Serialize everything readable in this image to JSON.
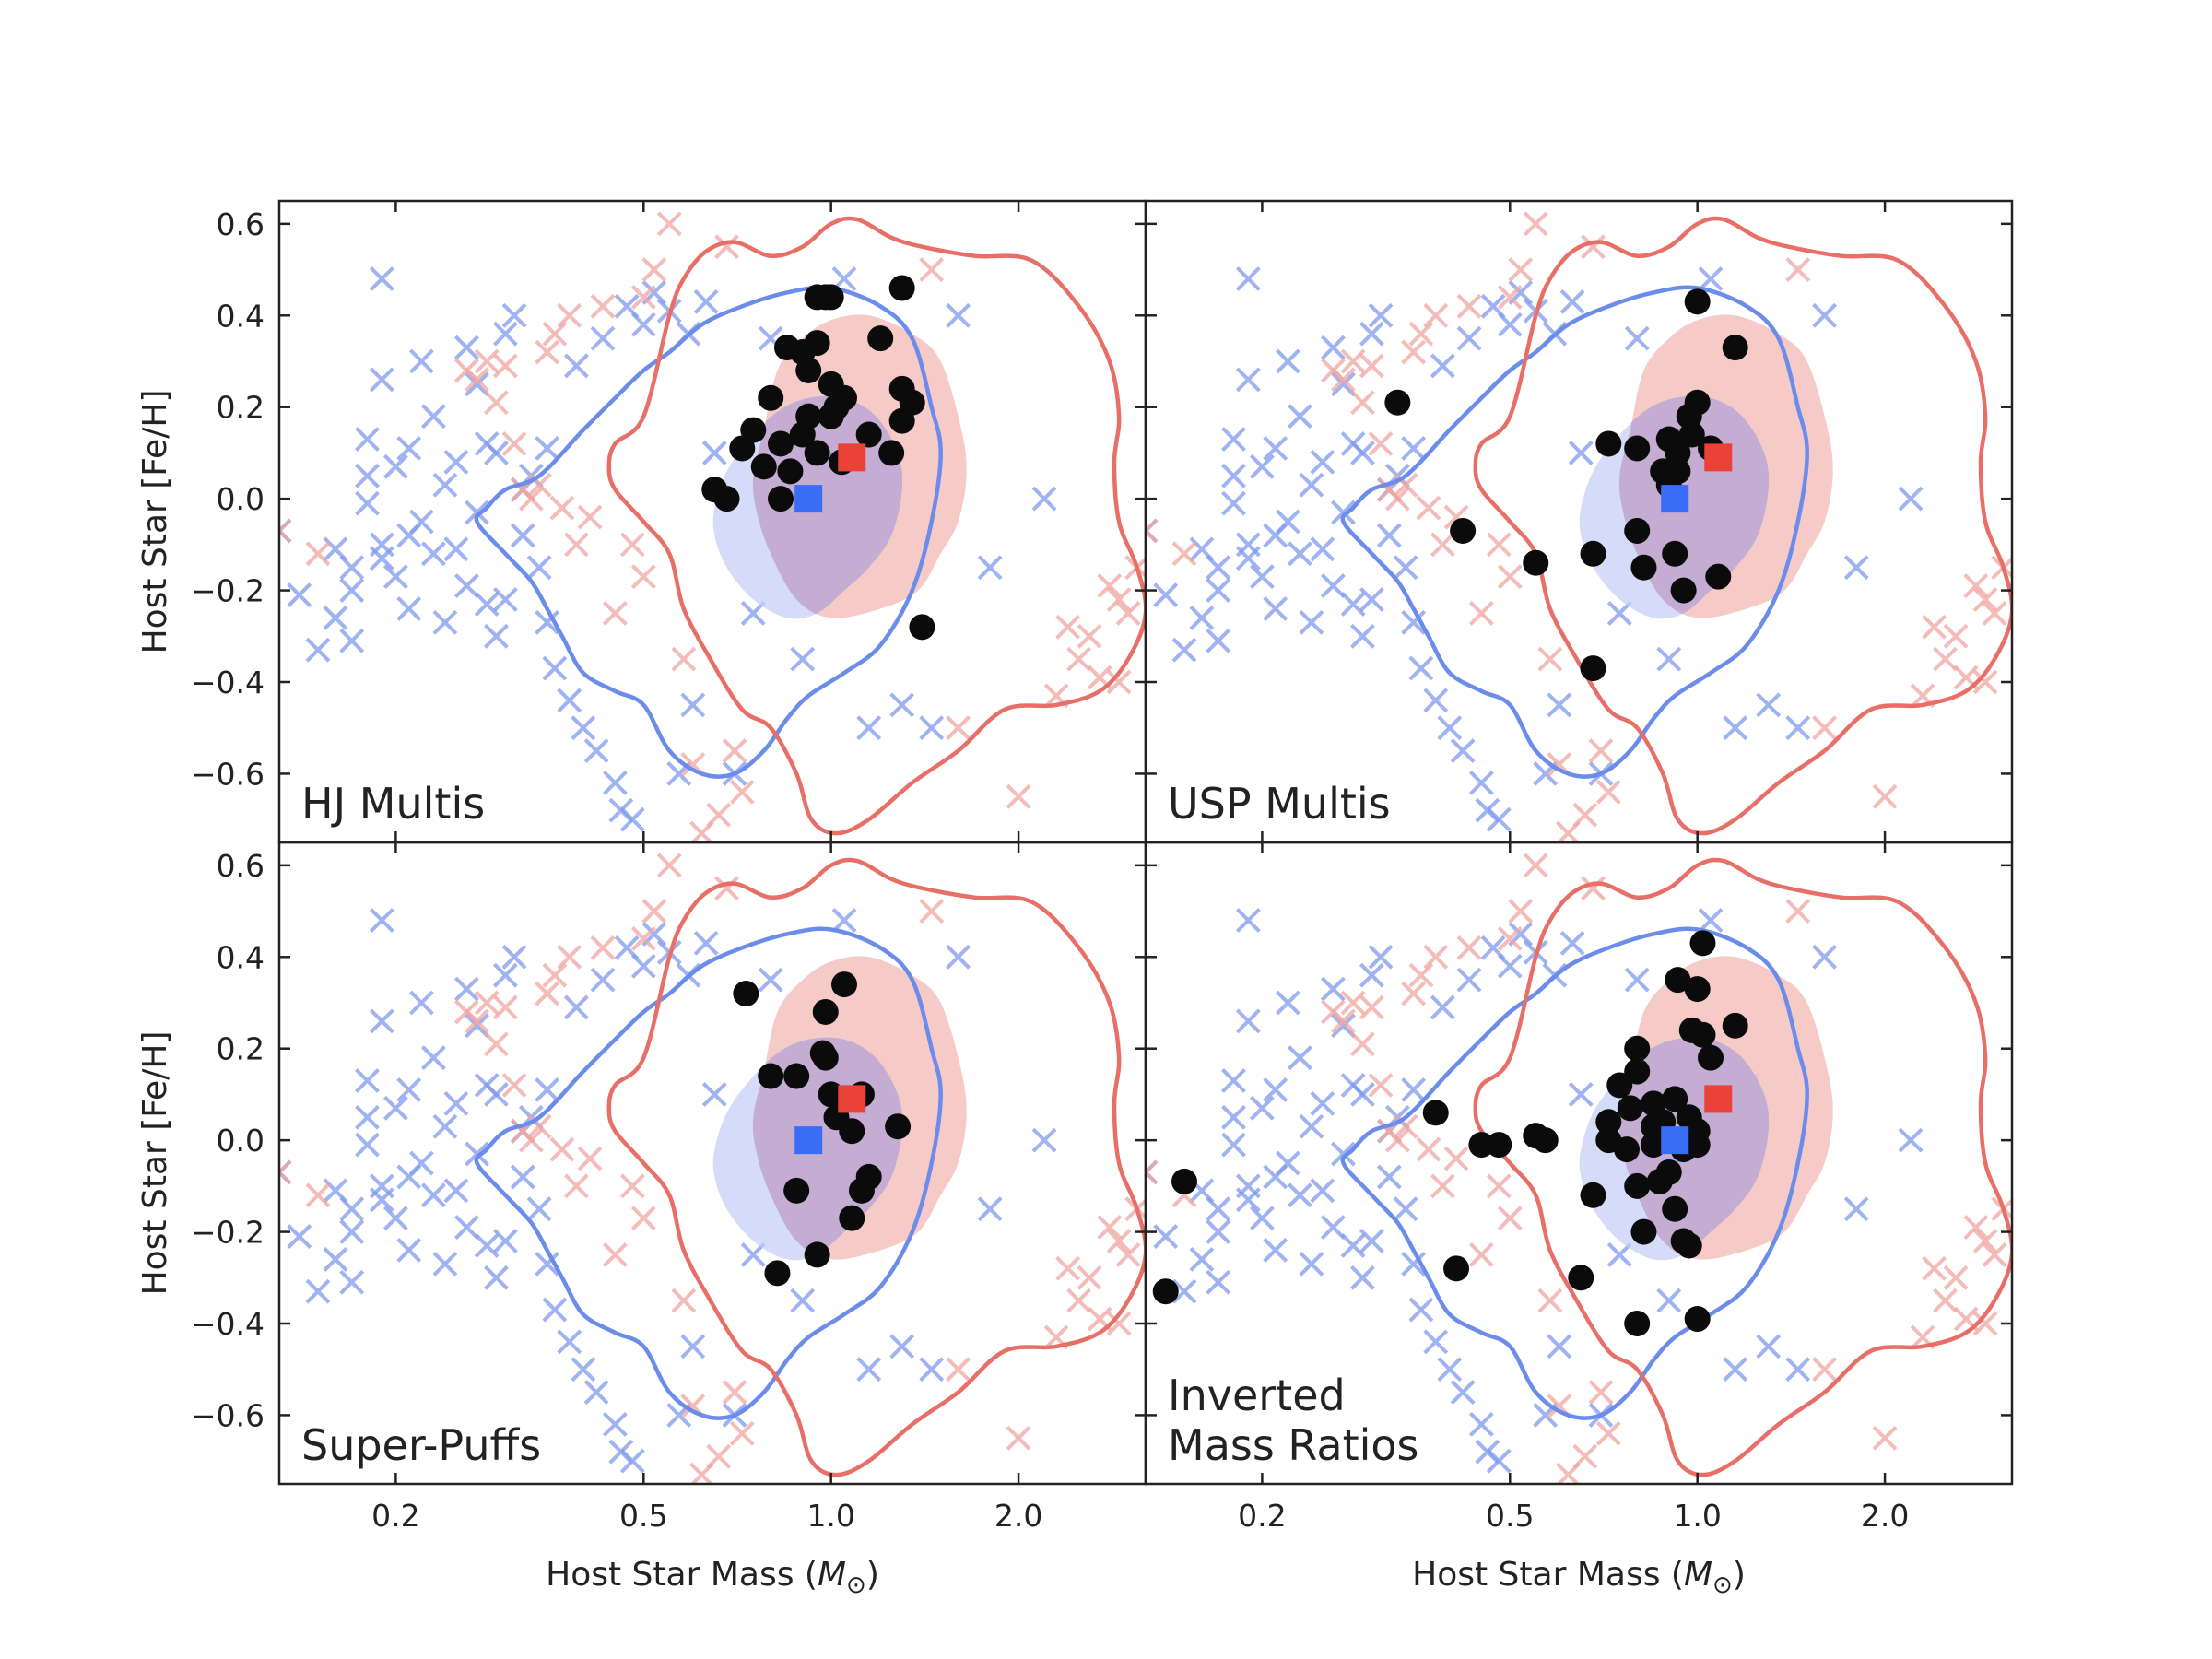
{
  "chart_data": {
    "type": "scatter",
    "x_scale": "log",
    "xlim": [
      0.13,
      3.2
    ],
    "ylim": [
      -0.75,
      0.65
    ],
    "xlabel": "Host Star Mass (",
    "xlabel_symbol": "M",
    "xlabel_subscript": "⊙",
    "xlabel_close": ")",
    "ylabel": "Host Star [Fe/H]",
    "x_ticks": [
      {
        "v": 0.2,
        "label": "0.2"
      },
      {
        "v": 0.5,
        "label": "0.5"
      },
      {
        "v": 1.0,
        "label": "1.0"
      },
      {
        "v": 2.0,
        "label": "2.0"
      }
    ],
    "y_ticks": [
      {
        "v": 0.6,
        "label": "0.6"
      },
      {
        "v": 0.4,
        "label": "0.4"
      },
      {
        "v": 0.2,
        "label": "0.2"
      },
      {
        "v": 0.0,
        "label": "0.0"
      },
      {
        "v": -0.2,
        "label": "−0.2"
      },
      {
        "v": -0.4,
        "label": "−0.4"
      },
      {
        "v": -0.6,
        "label": "−0.6"
      }
    ],
    "colors": {
      "blue_cross": "#7f98ee",
      "red_cross": "#f0a5a0",
      "blue_fill": "#c3cdf8",
      "red_fill": "#f5c2bd",
      "overlap_fill": "#c4acd3",
      "blue_line": "#6b8cea",
      "red_line": "#e86f67",
      "black_point": "#0b0b0b",
      "blue_marker": "#3b6cf6",
      "red_marker": "#ea4236"
    },
    "blue_median": {
      "x": 0.92,
      "y": 0.0
    },
    "red_median": {
      "x": 1.08,
      "y": 0.09
    },
    "background_blue": [
      [
        0.13,
        -0.07
      ],
      [
        0.14,
        -0.21
      ],
      [
        0.15,
        -0.33
      ],
      [
        0.16,
        -0.11
      ],
      [
        0.17,
        -0.15
      ],
      [
        0.17,
        -0.2
      ],
      [
        0.18,
        -0.01
      ],
      [
        0.18,
        0.05
      ],
      [
        0.18,
        0.13
      ],
      [
        0.19,
        -0.1
      ],
      [
        0.19,
        0.26
      ],
      [
        0.19,
        -0.13
      ],
      [
        0.2,
        -0.17
      ],
      [
        0.2,
        0.07
      ],
      [
        0.21,
        -0.24
      ],
      [
        0.21,
        0.11
      ],
      [
        0.22,
        -0.05
      ],
      [
        0.23,
        -0.12
      ],
      [
        0.23,
        0.18
      ],
      [
        0.24,
        -0.27
      ],
      [
        0.24,
        0.03
      ],
      [
        0.25,
        0.08
      ],
      [
        0.26,
        -0.19
      ],
      [
        0.26,
        0.33
      ],
      [
        0.27,
        -0.03
      ],
      [
        0.28,
        0.12
      ],
      [
        0.29,
        -0.3
      ],
      [
        0.29,
        0.1
      ],
      [
        0.3,
        -0.22
      ],
      [
        0.3,
        0.36
      ],
      [
        0.31,
        0.4
      ],
      [
        0.32,
        -0.08
      ],
      [
        0.32,
        0.02
      ],
      [
        0.33,
        0.05
      ],
      [
        0.34,
        -0.15
      ],
      [
        0.35,
        0.11
      ],
      [
        0.36,
        -0.37
      ],
      [
        0.38,
        -0.44
      ],
      [
        0.39,
        0.29
      ],
      [
        0.4,
        -0.5
      ],
      [
        0.42,
        -0.55
      ],
      [
        0.43,
        0.35
      ],
      [
        0.45,
        -0.62
      ],
      [
        0.47,
        0.42
      ],
      [
        0.48,
        -0.7
      ],
      [
        0.5,
        0.38
      ],
      [
        0.52,
        0.45
      ],
      [
        0.55,
        0.41
      ],
      [
        0.57,
        -0.6
      ],
      [
        0.59,
        0.36
      ],
      [
        0.63,
        0.43
      ],
      [
        0.19,
        0.48
      ],
      [
        0.16,
        -0.26
      ],
      [
        0.21,
        -0.08
      ],
      [
        0.25,
        -0.11
      ],
      [
        0.28,
        -0.23
      ],
      [
        0.35,
        -0.27
      ],
      [
        0.27,
        0.25
      ],
      [
        0.17,
        -0.31
      ],
      [
        0.22,
        0.3
      ],
      [
        0.46,
        -0.68
      ],
      [
        1.05,
        0.48
      ],
      [
        1.15,
        -0.5
      ],
      [
        1.3,
        -0.45
      ],
      [
        1.45,
        -0.5
      ],
      [
        1.6,
        0.4
      ],
      [
        1.8,
        -0.15
      ],
      [
        2.2,
        0.0
      ],
      [
        0.9,
        -0.35
      ],
      [
        0.8,
        0.35
      ],
      [
        0.7,
        -0.6
      ],
      [
        0.65,
        0.1
      ],
      [
        0.75,
        -0.25
      ],
      [
        0.85,
        0.15
      ],
      [
        0.6,
        -0.45
      ]
    ],
    "background_red": [
      [
        0.13,
        -0.07
      ],
      [
        0.15,
        -0.12
      ],
      [
        0.26,
        0.28
      ],
      [
        0.27,
        0.26
      ],
      [
        0.28,
        0.3
      ],
      [
        0.29,
        0.21
      ],
      [
        0.3,
        0.29
      ],
      [
        0.31,
        0.12
      ],
      [
        0.32,
        0.02
      ],
      [
        0.33,
        0.0
      ],
      [
        0.34,
        0.03
      ],
      [
        0.35,
        0.32
      ],
      [
        0.36,
        0.36
      ],
      [
        0.37,
        -0.02
      ],
      [
        0.38,
        0.4
      ],
      [
        0.39,
        -0.1
      ],
      [
        0.41,
        -0.04
      ],
      [
        0.43,
        0.42
      ],
      [
        0.45,
        -0.25
      ],
      [
        0.5,
        0.44
      ],
      [
        0.52,
        0.5
      ],
      [
        0.55,
        0.6
      ],
      [
        0.58,
        -0.35
      ],
      [
        0.6,
        -0.58
      ],
      [
        0.62,
        -0.73
      ],
      [
        0.66,
        -0.69
      ],
      [
        0.7,
        -0.55
      ],
      [
        0.72,
        -0.64
      ],
      [
        1.45,
        0.5
      ],
      [
        1.6,
        -0.5
      ],
      [
        2.0,
        -0.65
      ],
      [
        2.4,
        -0.28
      ],
      [
        2.5,
        -0.35
      ],
      [
        2.6,
        -0.3
      ],
      [
        2.7,
        -0.39
      ],
      [
        2.8,
        -0.19
      ],
      [
        2.9,
        -0.22
      ],
      [
        3.0,
        -0.25
      ],
      [
        3.1,
        -0.15
      ],
      [
        2.3,
        -0.43
      ],
      [
        2.9,
        -0.4
      ],
      [
        0.48,
        -0.1
      ],
      [
        0.5,
        -0.17
      ],
      [
        0.68,
        0.55
      ],
      [
        1.2,
        0.12
      ]
    ],
    "red_contour_outer": [
      [
        0.45,
        0.12
      ],
      [
        0.5,
        0.18
      ],
      [
        0.55,
        0.4
      ],
      [
        0.58,
        0.48
      ],
      [
        0.63,
        0.54
      ],
      [
        0.7,
        0.56
      ],
      [
        0.8,
        0.53
      ],
      [
        0.9,
        0.55
      ],
      [
        1.0,
        0.6
      ],
      [
        1.1,
        0.61
      ],
      [
        1.25,
        0.57
      ],
      [
        1.4,
        0.55
      ],
      [
        1.7,
        0.53
      ],
      [
        2.1,
        0.52
      ],
      [
        2.5,
        0.42
      ],
      [
        2.8,
        0.3
      ],
      [
        2.9,
        0.18
      ],
      [
        2.85,
        0.08
      ],
      [
        2.9,
        -0.05
      ],
      [
        3.1,
        -0.15
      ],
      [
        3.2,
        -0.25
      ],
      [
        3.0,
        -0.35
      ],
      [
        2.7,
        -0.42
      ],
      [
        2.3,
        -0.45
      ],
      [
        1.9,
        -0.46
      ],
      [
        1.6,
        -0.55
      ],
      [
        1.35,
        -0.62
      ],
      [
        1.15,
        -0.7
      ],
      [
        1.02,
        -0.73
      ],
      [
        0.93,
        -0.7
      ],
      [
        0.88,
        -0.6
      ],
      [
        0.8,
        -0.5
      ],
      [
        0.72,
        -0.46
      ],
      [
        0.64,
        -0.35
      ],
      [
        0.58,
        -0.24
      ],
      [
        0.55,
        -0.12
      ],
      [
        0.5,
        -0.05
      ],
      [
        0.45,
        0.02
      ],
      [
        0.44,
        0.07
      ],
      [
        0.45,
        0.12
      ]
    ],
    "blue_contour_outer": [
      [
        0.27,
        -0.05
      ],
      [
        0.28,
        -0.02
      ],
      [
        0.3,
        0.02
      ],
      [
        0.34,
        0.05
      ],
      [
        0.4,
        0.15
      ],
      [
        0.45,
        0.22
      ],
      [
        0.5,
        0.28
      ],
      [
        0.55,
        0.32
      ],
      [
        0.62,
        0.38
      ],
      [
        0.72,
        0.42
      ],
      [
        0.85,
        0.45
      ],
      [
        1.0,
        0.46
      ],
      [
        1.2,
        0.42
      ],
      [
        1.35,
        0.35
      ],
      [
        1.45,
        0.2
      ],
      [
        1.5,
        0.1
      ],
      [
        1.45,
        -0.05
      ],
      [
        1.35,
        -0.2
      ],
      [
        1.2,
        -0.32
      ],
      [
        1.05,
        -0.38
      ],
      [
        0.92,
        -0.43
      ],
      [
        0.85,
        -0.48
      ],
      [
        0.78,
        -0.55
      ],
      [
        0.7,
        -0.6
      ],
      [
        0.62,
        -0.6
      ],
      [
        0.55,
        -0.55
      ],
      [
        0.5,
        -0.45
      ],
      [
        0.45,
        -0.42
      ],
      [
        0.4,
        -0.38
      ],
      [
        0.37,
        -0.3
      ],
      [
        0.35,
        -0.24
      ],
      [
        0.33,
        -0.18
      ],
      [
        0.3,
        -0.12
      ],
      [
        0.27,
        -0.05
      ]
    ],
    "red_fill_region": [
      [
        0.75,
        0.05
      ],
      [
        0.78,
        0.15
      ],
      [
        0.82,
        0.28
      ],
      [
        0.9,
        0.35
      ],
      [
        1.0,
        0.39
      ],
      [
        1.15,
        0.4
      ],
      [
        1.35,
        0.36
      ],
      [
        1.5,
        0.3
      ],
      [
        1.62,
        0.15
      ],
      [
        1.65,
        0.05
      ],
      [
        1.6,
        -0.05
      ],
      [
        1.5,
        -0.12
      ],
      [
        1.38,
        -0.2
      ],
      [
        1.2,
        -0.24
      ],
      [
        1.0,
        -0.26
      ],
      [
        0.88,
        -0.22
      ],
      [
        0.8,
        -0.12
      ],
      [
        0.76,
        -0.03
      ],
      [
        0.75,
        0.05
      ]
    ],
    "blue_fill_region": [
      [
        0.65,
        -0.02
      ],
      [
        0.68,
        0.06
      ],
      [
        0.74,
        0.13
      ],
      [
        0.82,
        0.19
      ],
      [
        0.92,
        0.22
      ],
      [
        1.05,
        0.22
      ],
      [
        1.18,
        0.18
      ],
      [
        1.28,
        0.1
      ],
      [
        1.3,
        0.02
      ],
      [
        1.25,
        -0.08
      ],
      [
        1.15,
        -0.15
      ],
      [
        1.05,
        -0.2
      ],
      [
        0.95,
        -0.25
      ],
      [
        0.85,
        -0.26
      ],
      [
        0.75,
        -0.22
      ],
      [
        0.68,
        -0.15
      ],
      [
        0.65,
        -0.08
      ],
      [
        0.65,
        -0.02
      ]
    ],
    "panels": [
      {
        "label": [
          "HJ Multis"
        ],
        "points": [
          [
            0.95,
            0.44
          ],
          [
            0.98,
            0.44
          ],
          [
            1.0,
            0.44
          ],
          [
            1.3,
            0.46
          ],
          [
            0.85,
            0.33
          ],
          [
            0.9,
            0.32
          ],
          [
            0.95,
            0.34
          ],
          [
            1.2,
            0.35
          ],
          [
            0.92,
            0.28
          ],
          [
            1.0,
            0.25
          ],
          [
            1.05,
            0.22
          ],
          [
            1.3,
            0.24
          ],
          [
            1.35,
            0.21
          ],
          [
            0.8,
            0.22
          ],
          [
            0.92,
            0.18
          ],
          [
            1.02,
            0.2
          ],
          [
            1.3,
            0.17
          ],
          [
            0.75,
            0.15
          ],
          [
            0.83,
            0.12
          ],
          [
            0.9,
            0.14
          ],
          [
            1.15,
            0.14
          ],
          [
            0.72,
            0.11
          ],
          [
            0.78,
            0.07
          ],
          [
            0.86,
            0.06
          ],
          [
            0.95,
            0.1
          ],
          [
            1.04,
            0.08
          ],
          [
            1.25,
            0.1
          ],
          [
            0.65,
            0.02
          ],
          [
            0.68,
            0.0
          ],
          [
            0.83,
            0.0
          ],
          [
            1.4,
            -0.28
          ],
          [
            1.0,
            0.18
          ]
        ]
      },
      {
        "label": [
          "USP Multis"
        ],
        "points": [
          [
            1.0,
            0.43
          ],
          [
            1.15,
            0.33
          ],
          [
            0.33,
            0.21
          ],
          [
            0.9,
            0.13
          ],
          [
            1.0,
            0.21
          ],
          [
            0.72,
            0.12
          ],
          [
            0.8,
            0.11
          ],
          [
            0.88,
            0.06
          ],
          [
            0.93,
            0.1
          ],
          [
            0.98,
            0.14
          ],
          [
            1.05,
            0.11
          ],
          [
            0.9,
            0.03
          ],
          [
            0.93,
            0.06
          ],
          [
            0.42,
            -0.07
          ],
          [
            0.55,
            -0.14
          ],
          [
            0.68,
            -0.12
          ],
          [
            0.8,
            -0.07
          ],
          [
            0.82,
            -0.15
          ],
          [
            0.92,
            -0.12
          ],
          [
            0.95,
            -0.2
          ],
          [
            1.08,
            -0.17
          ],
          [
            0.68,
            -0.37
          ],
          [
            0.97,
            0.18
          ]
        ]
      },
      {
        "label": [
          "Super-Puffs"
        ],
        "points": [
          [
            0.73,
            0.32
          ],
          [
            1.05,
            0.34
          ],
          [
            0.98,
            0.28
          ],
          [
            0.8,
            0.14
          ],
          [
            0.88,
            0.14
          ],
          [
            0.97,
            0.19
          ],
          [
            0.98,
            0.18
          ],
          [
            1.0,
            0.1
          ],
          [
            1.12,
            0.1
          ],
          [
            1.02,
            0.05
          ],
          [
            1.08,
            0.02
          ],
          [
            1.28,
            0.03
          ],
          [
            1.15,
            -0.08
          ],
          [
            1.12,
            -0.11
          ],
          [
            0.88,
            -0.11
          ],
          [
            1.08,
            -0.17
          ],
          [
            0.82,
            -0.29
          ],
          [
            0.95,
            -0.25
          ]
        ]
      },
      {
        "label": [
          "Inverted",
          "Mass Ratios"
        ],
        "points": [
          [
            1.02,
            0.43
          ],
          [
            0.93,
            0.35
          ],
          [
            1.0,
            0.33
          ],
          [
            0.98,
            0.24
          ],
          [
            1.02,
            0.23
          ],
          [
            1.15,
            0.25
          ],
          [
            0.8,
            0.2
          ],
          [
            0.8,
            0.15
          ],
          [
            0.75,
            0.12
          ],
          [
            1.05,
            0.18
          ],
          [
            0.78,
            0.07
          ],
          [
            0.85,
            0.08
          ],
          [
            0.92,
            0.09
          ],
          [
            0.97,
            0.05
          ],
          [
            0.85,
            0.03
          ],
          [
            0.88,
            0.04
          ],
          [
            0.72,
            0.04
          ],
          [
            1.0,
            0.02
          ],
          [
            0.38,
            0.06
          ],
          [
            0.72,
            0.0
          ],
          [
            0.77,
            -0.02
          ],
          [
            0.85,
            -0.01
          ],
          [
            0.95,
            -0.02
          ],
          [
            1.0,
            -0.01
          ],
          [
            0.45,
            -0.01
          ],
          [
            0.48,
            -0.01
          ],
          [
            0.55,
            0.01
          ],
          [
            0.57,
            0.0
          ],
          [
            0.8,
            -0.1
          ],
          [
            0.87,
            -0.09
          ],
          [
            0.9,
            -0.07
          ],
          [
            0.68,
            -0.12
          ],
          [
            0.92,
            -0.15
          ],
          [
            0.95,
            -0.22
          ],
          [
            0.82,
            -0.2
          ],
          [
            0.97,
            -0.23
          ],
          [
            0.41,
            -0.28
          ],
          [
            0.65,
            -0.3
          ],
          [
            0.8,
            -0.4
          ],
          [
            1.0,
            -0.39
          ],
          [
            0.15,
            -0.09
          ],
          [
            0.14,
            -0.33
          ]
        ]
      }
    ]
  }
}
